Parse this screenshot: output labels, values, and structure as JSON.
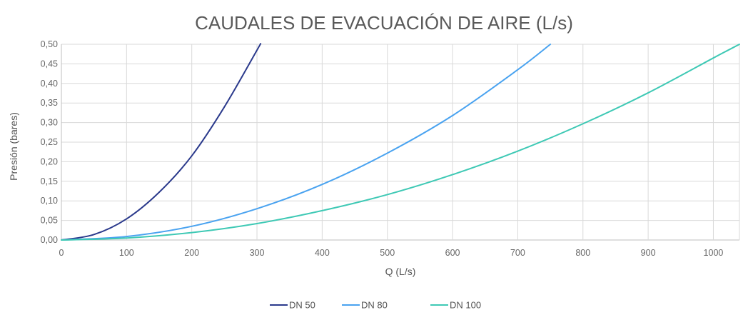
{
  "chart_data": {
    "type": "line",
    "title": "CAUDALES DE EVACUACIÓN DE AIRE (L/s)",
    "xlabel": "Q (L/s)",
    "ylabel": "Presión (bares)",
    "xlim": [
      0,
      1040
    ],
    "ylim": [
      0,
      0.5
    ],
    "x_ticks": [
      0,
      100,
      200,
      300,
      400,
      500,
      600,
      700,
      800,
      900,
      1000
    ],
    "x_tick_labels": [
      "0",
      "100",
      "200",
      "300",
      "400",
      "500",
      "600",
      "700",
      "800",
      "900",
      "1000"
    ],
    "y_ticks": [
      0,
      0.05,
      0.1,
      0.15,
      0.2,
      0.25,
      0.3,
      0.35,
      0.4,
      0.45,
      0.5
    ],
    "y_tick_labels": [
      "0,00",
      "0,05",
      "0,10",
      "0,15",
      "0,20",
      "0,25",
      "0,30",
      "0,35",
      "0,40",
      "0,45",
      "0,50"
    ],
    "grid": true,
    "legend_position": "bottom",
    "series": [
      {
        "name": "DN 50",
        "color": "#2b3a8c",
        "x": [
          0,
          50,
          100,
          150,
          200,
          250,
          300,
          305
        ],
        "y": [
          0,
          0.014,
          0.054,
          0.122,
          0.215,
          0.34,
          0.485,
          0.5
        ]
      },
      {
        "name": "DN 80",
        "color": "#4aa3f0",
        "x": [
          0,
          100,
          200,
          300,
          400,
          500,
          600,
          700,
          750
        ],
        "y": [
          0,
          0.009,
          0.035,
          0.08,
          0.142,
          0.222,
          0.318,
          0.435,
          0.5
        ]
      },
      {
        "name": "DN 100",
        "color": "#3fc9b5",
        "x": [
          0,
          100,
          200,
          300,
          400,
          500,
          600,
          700,
          800,
          900,
          1000,
          1040
        ],
        "y": [
          0,
          0.005,
          0.019,
          0.042,
          0.075,
          0.116,
          0.167,
          0.227,
          0.297,
          0.376,
          0.465,
          0.5
        ]
      }
    ]
  }
}
